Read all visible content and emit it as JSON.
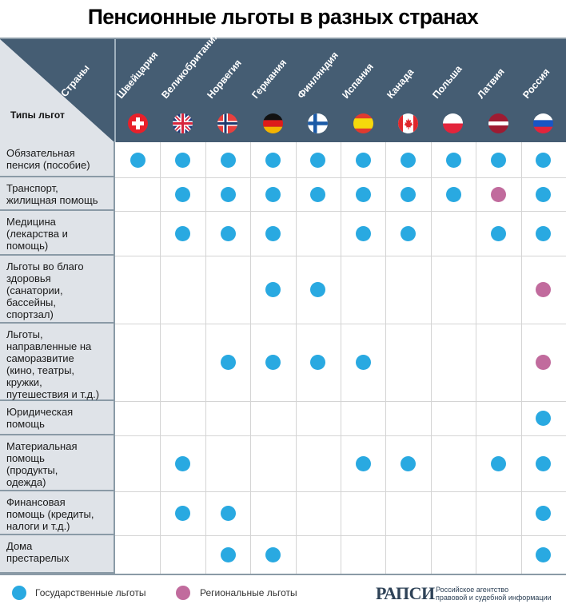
{
  "title": "Пенсионные льготы в разных странах",
  "corner": {
    "row_axis_label": "Типы льгот",
    "col_axis_label": "Страны"
  },
  "colors": {
    "header_bg": "#455d73",
    "label_bg": "#dfe3e8",
    "state": "#29a9e1",
    "regional": "#c16b9d"
  },
  "countries": [
    {
      "name": "Швейцария",
      "flag": "switzerland-flag-icon"
    },
    {
      "name": "Великобритания",
      "flag": "uk-flag-icon"
    },
    {
      "name": "Норвегия",
      "flag": "norway-flag-icon"
    },
    {
      "name": "Германия",
      "flag": "germany-flag-icon"
    },
    {
      "name": "Финляндия",
      "flag": "finland-flag-icon"
    },
    {
      "name": "Испания",
      "flag": "spain-flag-icon"
    },
    {
      "name": "Канада",
      "flag": "canada-flag-icon"
    },
    {
      "name": "Польша",
      "flag": "poland-flag-icon"
    },
    {
      "name": "Латвия",
      "flag": "latvia-flag-icon"
    },
    {
      "name": "Россия",
      "flag": "russia-flag-icon"
    }
  ],
  "legend": {
    "state_label": "Государственные льготы",
    "regional_label": "Региональные льготы"
  },
  "source": {
    "logo": "РАПСИ",
    "line1": "Российское агентство",
    "line2": "правовой и судебной информации"
  },
  "chart_data": {
    "type": "table",
    "title": "Пенсионные льготы в разных странах",
    "row_header": "Типы льгот",
    "column_header": "Страны",
    "columns": [
      "Швейцария",
      "Великобритания",
      "Норвегия",
      "Германия",
      "Финляндия",
      "Испания",
      "Канада",
      "Польша",
      "Латвия",
      "Россия"
    ],
    "value_legend": {
      "S": "Государственные льготы",
      "R": "Региональные льготы",
      "": "нет"
    },
    "rows": [
      {
        "label": "Обязательная пенсия (пособие)",
        "lines": [
          "Обязательная",
          "пенсия (пособие)"
        ],
        "values": [
          "S",
          "S",
          "S",
          "S",
          "S",
          "S",
          "S",
          "S",
          "S",
          "S"
        ]
      },
      {
        "label": "Транспорт, жилищная помощь",
        "lines": [
          "Транспорт,",
          "жилищная помощь"
        ],
        "values": [
          "",
          "S",
          "S",
          "S",
          "S",
          "S",
          "S",
          "S",
          "R",
          "S"
        ]
      },
      {
        "label": "Медицина (лекарства и помощь)",
        "lines": [
          "Медицина",
          "(лекарства и",
          "помощь)"
        ],
        "values": [
          "",
          "S",
          "S",
          "S",
          "",
          "S",
          "S",
          "",
          "S",
          "S"
        ]
      },
      {
        "label": "Льготы во благо здоровья (санатории, бассейны, спортзал)",
        "lines": [
          "Льготы во благо",
          "здоровья",
          "(санатории,",
          "бассейны,",
          "спортзал)"
        ],
        "values": [
          "",
          "",
          "",
          "S",
          "S",
          "",
          "",
          "",
          "",
          "R"
        ]
      },
      {
        "label": "Льготы, направленные на саморазвитие (кино, театры, кружки, путешествия и т.д.)",
        "lines": [
          "Льготы,",
          "направленные на",
          "саморазвитие",
          "(кино, театры,",
          "кружки,",
          "путешествия и т.д.)"
        ],
        "values": [
          "",
          "",
          "S",
          "S",
          "S",
          "S",
          "",
          "",
          "",
          "R"
        ]
      },
      {
        "label": "Юридическая помощь",
        "lines": [
          "Юридическая",
          "помощь"
        ],
        "values": [
          "",
          "",
          "",
          "",
          "",
          "",
          "",
          "",
          "",
          "S"
        ]
      },
      {
        "label": "Материальная помощь (продукты, одежда)",
        "lines": [
          "Материальная",
          "помощь",
          "(продукты,",
          "одежда)"
        ],
        "values": [
          "",
          "S",
          "",
          "",
          "",
          "S",
          "S",
          "",
          "S",
          "S"
        ]
      },
      {
        "label": "Финансовая помощь (кредиты, налоги и т.д.)",
        "lines": [
          "Финансовая",
          "помощь (кредиты,",
          "налоги и т.д.)"
        ],
        "values": [
          "",
          "S",
          "S",
          "",
          "",
          "",
          "",
          "",
          "",
          "S"
        ]
      },
      {
        "label": "Дома престарелых",
        "lines": [
          "Дома",
          "престарелых"
        ],
        "values": [
          "",
          "",
          "S",
          "S",
          "",
          "",
          "",
          "",
          "",
          "S"
        ]
      }
    ]
  }
}
